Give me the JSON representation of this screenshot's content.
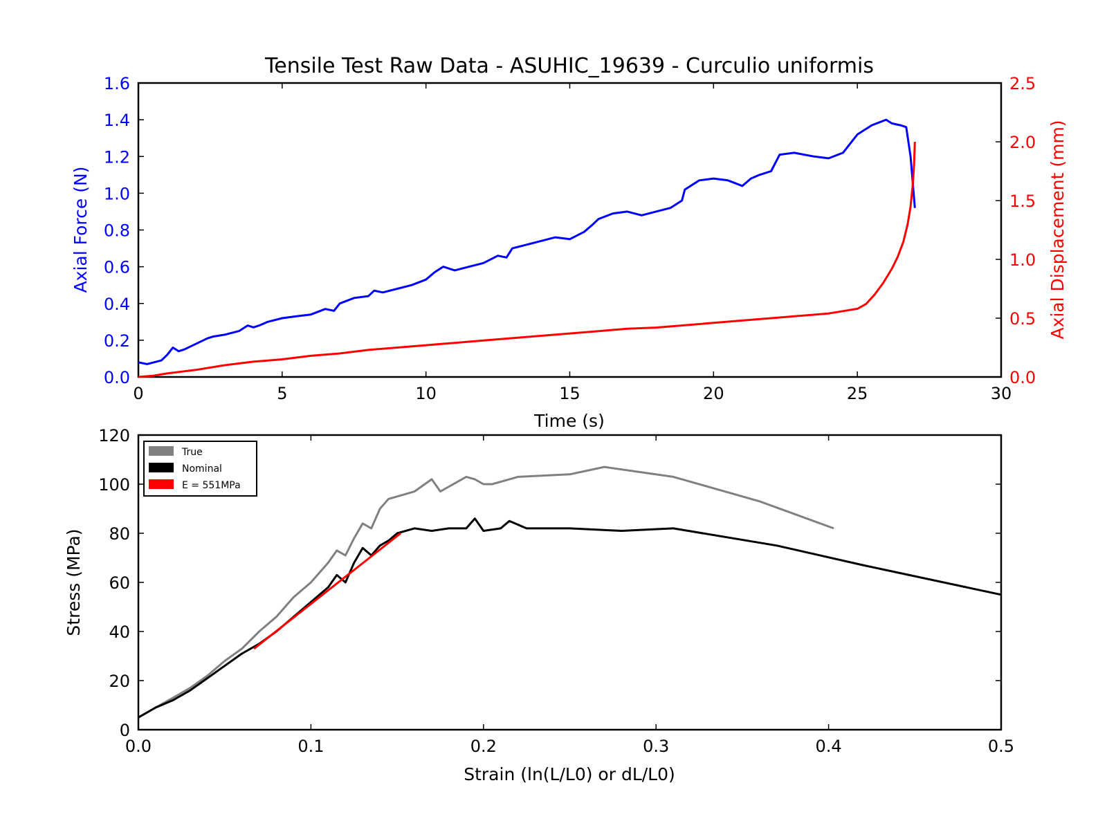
{
  "figure_title": "Tensile Test Raw Data - ASUHIC_19639 - Curculio uniformis",
  "chart_data": [
    {
      "type": "line",
      "title": "Tensile Test Raw Data - ASUHIC_19639 - Curculio uniformis",
      "xlabel": "Time (s)",
      "ylabel": "Axial Force (N)",
      "y2label": "Axial Displacement (mm)",
      "xlim": [
        0,
        30
      ],
      "ylim": [
        0,
        1.6
      ],
      "y2lim": [
        0,
        2.5
      ],
      "xticks": [
        "0",
        "5",
        "10",
        "15",
        "20",
        "25",
        "30"
      ],
      "yticks": [
        "0.0",
        "0.2",
        "0.4",
        "0.6",
        "0.8",
        "1.0",
        "1.2",
        "1.4",
        "1.6"
      ],
      "y2ticks": [
        "0.0",
        "0.5",
        "1.0",
        "1.5",
        "2.0",
        "2.5"
      ],
      "grid": false,
      "series": [
        {
          "axis": "left",
          "color": "#0000ff",
          "x": [
            0,
            0.3,
            0.8,
            1.0,
            1.2,
            1.4,
            1.6,
            2.0,
            2.4,
            2.6,
            3.0,
            3.5,
            3.8,
            4.0,
            4.2,
            4.5,
            5.0,
            5.5,
            6.0,
            6.5,
            6.8,
            7.0,
            7.5,
            8.0,
            8.2,
            8.5,
            9.0,
            9.5,
            10.0,
            10.3,
            10.6,
            11.0,
            11.5,
            12.0,
            12.5,
            12.8,
            13.0,
            13.5,
            14.0,
            14.5,
            15.0,
            15.5,
            15.8,
            16.0,
            16.5,
            17.0,
            17.5,
            18.0,
            18.5,
            18.9,
            19.0,
            19.5,
            20.0,
            20.5,
            21.0,
            21.3,
            21.6,
            22.0,
            22.3,
            22.8,
            23.5,
            24.0,
            24.5,
            25.0,
            25.5,
            26.0,
            26.2,
            26.5,
            26.7,
            26.85,
            27.0
          ],
          "values": [
            0.08,
            0.07,
            0.09,
            0.12,
            0.16,
            0.14,
            0.15,
            0.18,
            0.21,
            0.22,
            0.23,
            0.25,
            0.28,
            0.27,
            0.28,
            0.3,
            0.32,
            0.33,
            0.34,
            0.37,
            0.36,
            0.4,
            0.43,
            0.44,
            0.47,
            0.46,
            0.48,
            0.5,
            0.53,
            0.57,
            0.6,
            0.58,
            0.6,
            0.62,
            0.66,
            0.65,
            0.7,
            0.72,
            0.74,
            0.76,
            0.75,
            0.79,
            0.83,
            0.86,
            0.89,
            0.9,
            0.88,
            0.9,
            0.92,
            0.96,
            1.02,
            1.07,
            1.08,
            1.07,
            1.04,
            1.08,
            1.1,
            1.12,
            1.21,
            1.22,
            1.2,
            1.19,
            1.22,
            1.32,
            1.37,
            1.4,
            1.38,
            1.37,
            1.36,
            1.2,
            0.92
          ]
        },
        {
          "axis": "right",
          "color": "#ff0000",
          "x": [
            0,
            0.5,
            1.0,
            2.0,
            3.0,
            4.0,
            5.0,
            6.0,
            7.0,
            8.0,
            9.0,
            10.0,
            11.0,
            12.0,
            13.0,
            14.0,
            15.0,
            16.0,
            17.0,
            18.0,
            19.0,
            20.0,
            21.0,
            22.0,
            23.0,
            24.0,
            24.5,
            25.0,
            25.3,
            25.6,
            25.9,
            26.2,
            26.4,
            26.6,
            26.75,
            26.85,
            26.92,
            26.97,
            27.0
          ],
          "values": [
            0.0,
            0.01,
            0.03,
            0.06,
            0.1,
            0.13,
            0.15,
            0.18,
            0.2,
            0.23,
            0.25,
            0.27,
            0.29,
            0.31,
            0.33,
            0.35,
            0.37,
            0.39,
            0.41,
            0.42,
            0.44,
            0.46,
            0.48,
            0.5,
            0.52,
            0.54,
            0.56,
            0.58,
            0.62,
            0.7,
            0.8,
            0.92,
            1.02,
            1.15,
            1.3,
            1.45,
            1.62,
            1.8,
            2.0
          ]
        }
      ]
    },
    {
      "type": "line",
      "title": "",
      "xlabel": "Strain (ln(L/L0) or dL/L0)",
      "ylabel": "Stress (MPa)",
      "xlim": [
        0,
        0.5
      ],
      "ylim": [
        0,
        120
      ],
      "xticks": [
        "0.0",
        "0.1",
        "0.2",
        "0.3",
        "0.4",
        "0.5"
      ],
      "yticks": [
        "0",
        "20",
        "40",
        "60",
        "80",
        "100",
        "120"
      ],
      "grid": false,
      "legend_position": "top-left",
      "series": [
        {
          "name": "True",
          "color": "#808080",
          "x": [
            0.0,
            0.01,
            0.02,
            0.03,
            0.04,
            0.05,
            0.06,
            0.07,
            0.08,
            0.09,
            0.1,
            0.11,
            0.115,
            0.12,
            0.125,
            0.13,
            0.135,
            0.14,
            0.145,
            0.15,
            0.16,
            0.17,
            0.175,
            0.18,
            0.19,
            0.195,
            0.2,
            0.205,
            0.22,
            0.25,
            0.27,
            0.31,
            0.36,
            0.403
          ],
          "values": [
            5,
            9,
            13,
            17,
            22,
            28,
            33,
            40,
            46,
            54,
            60,
            68,
            73,
            71,
            78,
            84,
            82,
            90,
            94,
            95,
            97,
            102,
            97,
            99,
            103,
            102,
            100,
            100,
            103,
            104,
            107,
            103,
            93,
            82
          ]
        },
        {
          "name": "Nominal",
          "color": "#000000",
          "x": [
            0.0,
            0.01,
            0.02,
            0.03,
            0.04,
            0.05,
            0.06,
            0.07,
            0.08,
            0.09,
            0.1,
            0.11,
            0.115,
            0.12,
            0.125,
            0.13,
            0.135,
            0.14,
            0.145,
            0.15,
            0.16,
            0.17,
            0.18,
            0.19,
            0.195,
            0.2,
            0.21,
            0.215,
            0.225,
            0.25,
            0.28,
            0.31,
            0.37,
            0.42,
            0.5
          ],
          "values": [
            5,
            9,
            12,
            16,
            21,
            26,
            31,
            35,
            40,
            46,
            52,
            58,
            63,
            60,
            68,
            74,
            71,
            75,
            77,
            80,
            82,
            81,
            82,
            82,
            86,
            81,
            82,
            85,
            82,
            82,
            81,
            82,
            75,
            67,
            55
          ]
        },
        {
          "name": "E = 551MPa",
          "color": "#ff0000",
          "x": [
            0.067,
            0.152
          ],
          "values": [
            33,
            80
          ]
        }
      ]
    }
  ]
}
